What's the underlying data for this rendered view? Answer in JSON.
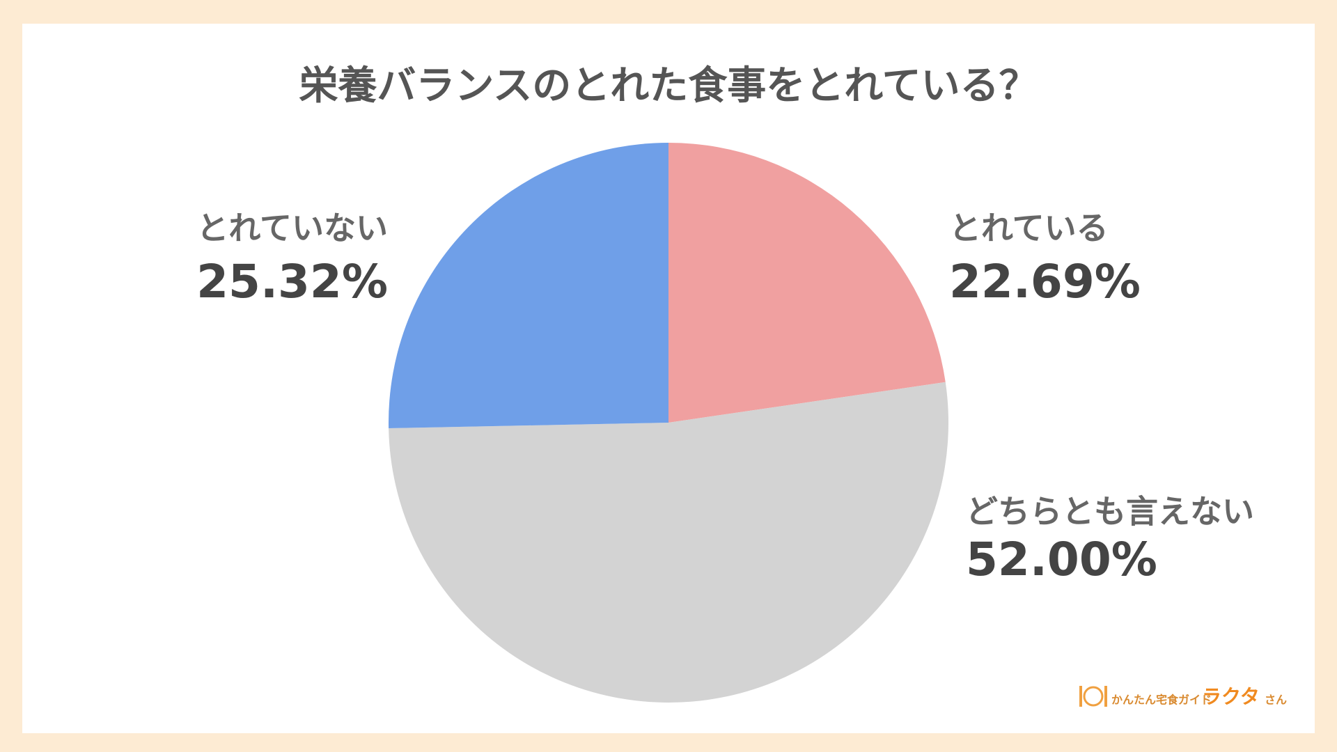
{
  "chart_data": {
    "type": "pie",
    "title": "栄養バランスのとれた食事をとれている？",
    "categories": [
      "とれている",
      "どちらとも言えない",
      "とれていない"
    ],
    "values": [
      22.69,
      52.0,
      25.32
    ],
    "value_labels": [
      "22.69%",
      "52.00%",
      "25.32%"
    ],
    "colors": [
      "#f0a0a0",
      "#d3d3d3",
      "#6f9fe8"
    ]
  },
  "logo": {
    "tagline": "かんたん宅食ガイド",
    "name": "ラクタ",
    "suffix": "さん"
  }
}
